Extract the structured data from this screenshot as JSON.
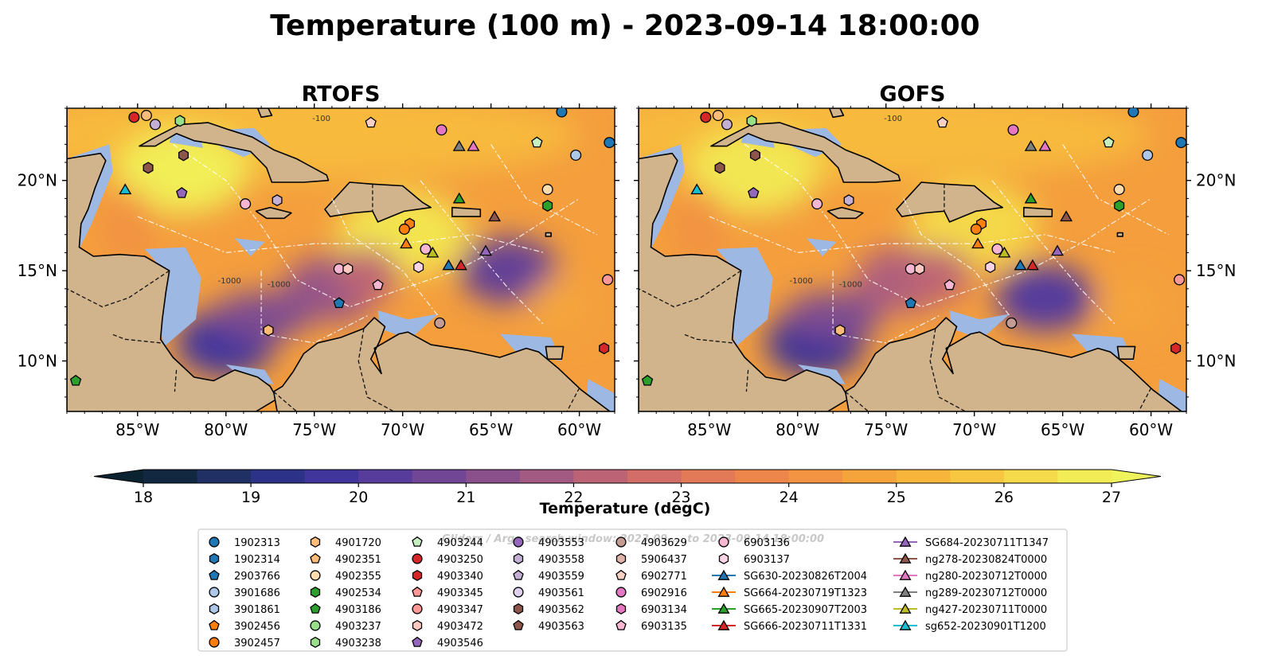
{
  "figure": {
    "title": "Temperature (100 m) - 2023-09-14 18:00:00",
    "watermark": "Gliders / Argo search window: 2023-09-... to 2023-09-14 18:00:00"
  },
  "colors": {
    "land": "#d2b48c",
    "shelf_water": "#9db8e2",
    "pacific": "#0b2231",
    "warm": "#f3d24a",
    "hot": "#f5ee55",
    "mid": "#e8833e",
    "cool": "#6a3f8f",
    "cold": "#3a3593"
  },
  "chart_data": [
    {
      "type": "heatmap",
      "title": "RTOFS",
      "variable": "Temperature at 100 m",
      "xlim": [
        -89,
        -58
      ],
      "ylim": [
        7.2,
        24.0
      ],
      "x_ticks": [
        "85°W",
        "80°W",
        "75°W",
        "70°W",
        "65°W",
        "60°W"
      ],
      "x_tick_values": [
        -85,
        -80,
        -75,
        -70,
        -65,
        -60
      ],
      "y_ticks": [
        "10°N",
        "15°N",
        "20°N"
      ],
      "y_tick_values": [
        10,
        15,
        20
      ],
      "y_axis_side": "left",
      "contour_labels": [
        "-1000",
        "-1000",
        "-100"
      ],
      "field_features": [
        {
          "lon": -82.5,
          "lat": 20.5,
          "temp": 26.8
        },
        {
          "lon": -70,
          "lat": 17.0,
          "temp": 26.5
        },
        {
          "lon": -80,
          "lat": 11.0,
          "temp": 19.8
        },
        {
          "lon": -64,
          "lat": 15.0,
          "temp": 20.5
        },
        {
          "lon": -74,
          "lat": 14.0,
          "temp": 21.5
        }
      ]
    },
    {
      "type": "heatmap",
      "title": "GOFS",
      "variable": "Temperature at 100 m",
      "xlim": [
        -89,
        -58
      ],
      "ylim": [
        7.2,
        24.0
      ],
      "x_ticks": [
        "85°W",
        "80°W",
        "75°W",
        "70°W",
        "65°W",
        "60°W"
      ],
      "x_tick_values": [
        -85,
        -80,
        -75,
        -70,
        -65,
        -60
      ],
      "y_ticks": [
        "10°N",
        "15°N",
        "20°N"
      ],
      "y_tick_values": [
        10,
        15,
        20
      ],
      "y_axis_side": "right",
      "contour_labels": [
        "-1000",
        "-1000",
        "-100"
      ],
      "field_features": [
        {
          "lon": -82.5,
          "lat": 20.5,
          "temp": 26.6
        },
        {
          "lon": -70,
          "lat": 17.5,
          "temp": 26.2
        },
        {
          "lon": -79,
          "lat": 11.0,
          "temp": 19.6
        },
        {
          "lon": -66,
          "lat": 13.5,
          "temp": 20.2
        },
        {
          "lon": -74,
          "lat": 14.5,
          "temp": 22.0
        }
      ]
    }
  ],
  "colorbar": {
    "label": "Temperature (degC)",
    "min": 18,
    "max": 27,
    "step": 0.5,
    "ticks": [
      "18",
      "19",
      "20",
      "21",
      "22",
      "23",
      "24",
      "25",
      "26",
      "27"
    ],
    "extend": "both"
  },
  "legend": {
    "columns": [
      [
        {
          "label": "1902313",
          "marker": "circle",
          "color": "#1f77b4"
        },
        {
          "label": "1902314",
          "marker": "hexagon",
          "color": "#1f77b4"
        },
        {
          "label": "2903766",
          "marker": "pentagon",
          "color": "#1f77b4"
        },
        {
          "label": "3901686",
          "marker": "circle",
          "color": "#aec7e8"
        },
        {
          "label": "3901861",
          "marker": "hexagon",
          "color": "#aec7e8"
        },
        {
          "label": "3902456",
          "marker": "pentagon",
          "color": "#ff7f0e"
        },
        {
          "label": "3902457",
          "marker": "circle",
          "color": "#ff7f0e"
        }
      ],
      [
        {
          "label": "4901720",
          "marker": "hexagon",
          "color": "#ffbb78"
        },
        {
          "label": "4902351",
          "marker": "pentagon",
          "color": "#ffbb78"
        },
        {
          "label": "4902355",
          "marker": "circle",
          "color": "#ffdcb0"
        },
        {
          "label": "4902534",
          "marker": "hexagon",
          "color": "#2ca02c"
        },
        {
          "label": "4903186",
          "marker": "pentagon",
          "color": "#2ca02c"
        },
        {
          "label": "4903237",
          "marker": "circle",
          "color": "#98df8a"
        },
        {
          "label": "4903238",
          "marker": "hexagon",
          "color": "#98df8a"
        }
      ],
      [
        {
          "label": "4903244",
          "marker": "pentagon",
          "color": "#c7f0c0"
        },
        {
          "label": "4903250",
          "marker": "circle",
          "color": "#d62728"
        },
        {
          "label": "4903340",
          "marker": "hexagon",
          "color": "#d62728"
        },
        {
          "label": "4903345",
          "marker": "pentagon",
          "color": "#ff9896"
        },
        {
          "label": "4903347",
          "marker": "circle",
          "color": "#ff9896"
        },
        {
          "label": "4903472",
          "marker": "hexagon",
          "color": "#ffc8c0"
        },
        {
          "label": "4903546",
          "marker": "pentagon",
          "color": "#9467bd"
        }
      ],
      [
        {
          "label": "4903553",
          "marker": "circle",
          "color": "#9467bd"
        },
        {
          "label": "4903558",
          "marker": "hexagon",
          "color": "#c5b0d5"
        },
        {
          "label": "4903559",
          "marker": "pentagon",
          "color": "#c5b0d5"
        },
        {
          "label": "4903561",
          "marker": "circle",
          "color": "#e0d0ee"
        },
        {
          "label": "4903562",
          "marker": "hexagon",
          "color": "#8c564b"
        },
        {
          "label": "4903563",
          "marker": "pentagon",
          "color": "#8c564b"
        }
      ],
      [
        {
          "label": "4903629",
          "marker": "circle",
          "color": "#c49c94"
        },
        {
          "label": "5906437",
          "marker": "hexagon",
          "color": "#e0b4aa"
        },
        {
          "label": "6902771",
          "marker": "pentagon",
          "color": "#f7d0c4"
        },
        {
          "label": "6902916",
          "marker": "circle",
          "color": "#e377c2"
        },
        {
          "label": "6903134",
          "marker": "hexagon",
          "color": "#e377c2"
        },
        {
          "label": "6903135",
          "marker": "pentagon",
          "color": "#f7b6d2"
        }
      ],
      [
        {
          "label": "6903136",
          "marker": "circle",
          "color": "#f7b6d2"
        },
        {
          "label": "6903137",
          "marker": "hexagon",
          "color": "#fbd5e6"
        },
        {
          "label": "SG630-20230826T2004",
          "marker": "line-triangle",
          "color": "#1f77b4"
        },
        {
          "label": "SG664-20230719T1323",
          "marker": "line-triangle",
          "color": "#ff7f0e"
        },
        {
          "label": "SG665-20230907T2003",
          "marker": "line-triangle",
          "color": "#2ca02c"
        },
        {
          "label": "SG666-20230711T1331",
          "marker": "line-triangle",
          "color": "#d62728"
        }
      ],
      [
        {
          "label": "SG684-20230711T1347",
          "marker": "line-triangle",
          "color": "#9467bd"
        },
        {
          "label": "ng278-20230824T0000",
          "marker": "line-triangle",
          "color": "#8c564b"
        },
        {
          "label": "ng280-20230712T0000",
          "marker": "line-triangle",
          "color": "#e377c2"
        },
        {
          "label": "ng289-20230712T0000",
          "marker": "line-triangle",
          "color": "#7f7f7f"
        },
        {
          "label": "ng427-20230711T0000",
          "marker": "line-triangle",
          "color": "#bcbd22"
        },
        {
          "label": "sg652-20230901T1200",
          "marker": "line-triangle",
          "color": "#17becf"
        }
      ]
    ]
  },
  "platforms": [
    {
      "lon": -85.2,
      "lat": 23.5,
      "marker": "circle",
      "color": "#d62728"
    },
    {
      "lon": -84.5,
      "lat": 23.6,
      "marker": "circle",
      "color": "#ffbb78"
    },
    {
      "lon": -84.0,
      "lat": 23.1,
      "marker": "circle",
      "color": "#c5b0d5"
    },
    {
      "lon": -82.6,
      "lat": 23.3,
      "marker": "hexagon",
      "color": "#98df8a"
    },
    {
      "lon": -82.4,
      "lat": 21.4,
      "marker": "hexagon",
      "color": "#8c564b"
    },
    {
      "lon": -84.4,
      "lat": 20.7,
      "marker": "hexagon",
      "color": "#8c564b"
    },
    {
      "lon": -85.7,
      "lat": 19.5,
      "marker": "triangle",
      "color": "#17becf"
    },
    {
      "lon": -82.5,
      "lat": 19.3,
      "marker": "pentagon",
      "color": "#9467bd"
    },
    {
      "lon": -78.9,
      "lat": 18.7,
      "marker": "circle",
      "color": "#f7b6d2"
    },
    {
      "lon": -77.1,
      "lat": 18.9,
      "marker": "hexagon",
      "color": "#c5b0d5"
    },
    {
      "lon": -71.8,
      "lat": 23.2,
      "marker": "pentagon",
      "color": "#f7d0c4"
    },
    {
      "lon": -67.8,
      "lat": 22.8,
      "marker": "circle",
      "color": "#e377c2"
    },
    {
      "lon": -66.8,
      "lat": 21.9,
      "marker": "triangle",
      "color": "#7f7f7f"
    },
    {
      "lon": -66.0,
      "lat": 21.9,
      "marker": "triangle",
      "color": "#e377c2"
    },
    {
      "lon": -61.0,
      "lat": 23.8,
      "marker": "circle",
      "color": "#1f77b4"
    },
    {
      "lon": -62.4,
      "lat": 22.1,
      "marker": "pentagon",
      "color": "#c7f0c0"
    },
    {
      "lon": -60.2,
      "lat": 21.4,
      "marker": "circle",
      "color": "#aec7e8"
    },
    {
      "lon": -58.3,
      "lat": 22.1,
      "marker": "circle",
      "color": "#1f77b4"
    },
    {
      "lon": -61.8,
      "lat": 19.5,
      "marker": "circle",
      "color": "#ffdcb0"
    },
    {
      "lon": -61.8,
      "lat": 18.6,
      "marker": "hexagon",
      "color": "#2ca02c"
    },
    {
      "lon": -66.8,
      "lat": 19.0,
      "marker": "triangle",
      "color": "#2ca02c"
    },
    {
      "lon": -64.8,
      "lat": 18.0,
      "marker": "triangle",
      "color": "#8c564b"
    },
    {
      "lon": -69.6,
      "lat": 17.6,
      "marker": "hexagon",
      "color": "#ff7f0e"
    },
    {
      "lon": -69.9,
      "lat": 17.3,
      "marker": "circle",
      "color": "#ff7f0e"
    },
    {
      "lon": -69.8,
      "lat": 16.5,
      "marker": "triangle",
      "color": "#ff7f0e"
    },
    {
      "lon": -68.7,
      "lat": 16.2,
      "marker": "circle",
      "color": "#f7b6d2"
    },
    {
      "lon": -68.3,
      "lat": 16.0,
      "marker": "triangle",
      "color": "#bcbd22"
    },
    {
      "lon": -69.1,
      "lat": 15.2,
      "marker": "hexagon",
      "color": "#fbd5e6"
    },
    {
      "lon": -67.4,
      "lat": 15.3,
      "marker": "triangle",
      "color": "#1f77b4"
    },
    {
      "lon": -66.7,
      "lat": 15.3,
      "marker": "triangle",
      "color": "#d62728"
    },
    {
      "lon": -65.3,
      "lat": 16.1,
      "marker": "triangle",
      "color": "#9467bd"
    },
    {
      "lon": -73.6,
      "lat": 15.1,
      "marker": "circle",
      "color": "#f7b6d2"
    },
    {
      "lon": -73.1,
      "lat": 15.1,
      "marker": "hexagon",
      "color": "#ffc8c0"
    },
    {
      "lon": -71.4,
      "lat": 14.2,
      "marker": "pentagon",
      "color": "#f7b6d2"
    },
    {
      "lon": -73.6,
      "lat": 13.2,
      "marker": "pentagon",
      "color": "#1f77b4"
    },
    {
      "lon": -77.6,
      "lat": 11.7,
      "marker": "hexagon",
      "color": "#ffbb78"
    },
    {
      "lon": -67.9,
      "lat": 12.1,
      "marker": "circle",
      "color": "#c49c94"
    },
    {
      "lon": -58.4,
      "lat": 14.5,
      "marker": "circle",
      "color": "#ff9896"
    },
    {
      "lon": -58.6,
      "lat": 10.7,
      "marker": "hexagon",
      "color": "#d62728"
    },
    {
      "lon": -88.5,
      "lat": 8.9,
      "marker": "pentagon",
      "color": "#2ca02c"
    }
  ]
}
